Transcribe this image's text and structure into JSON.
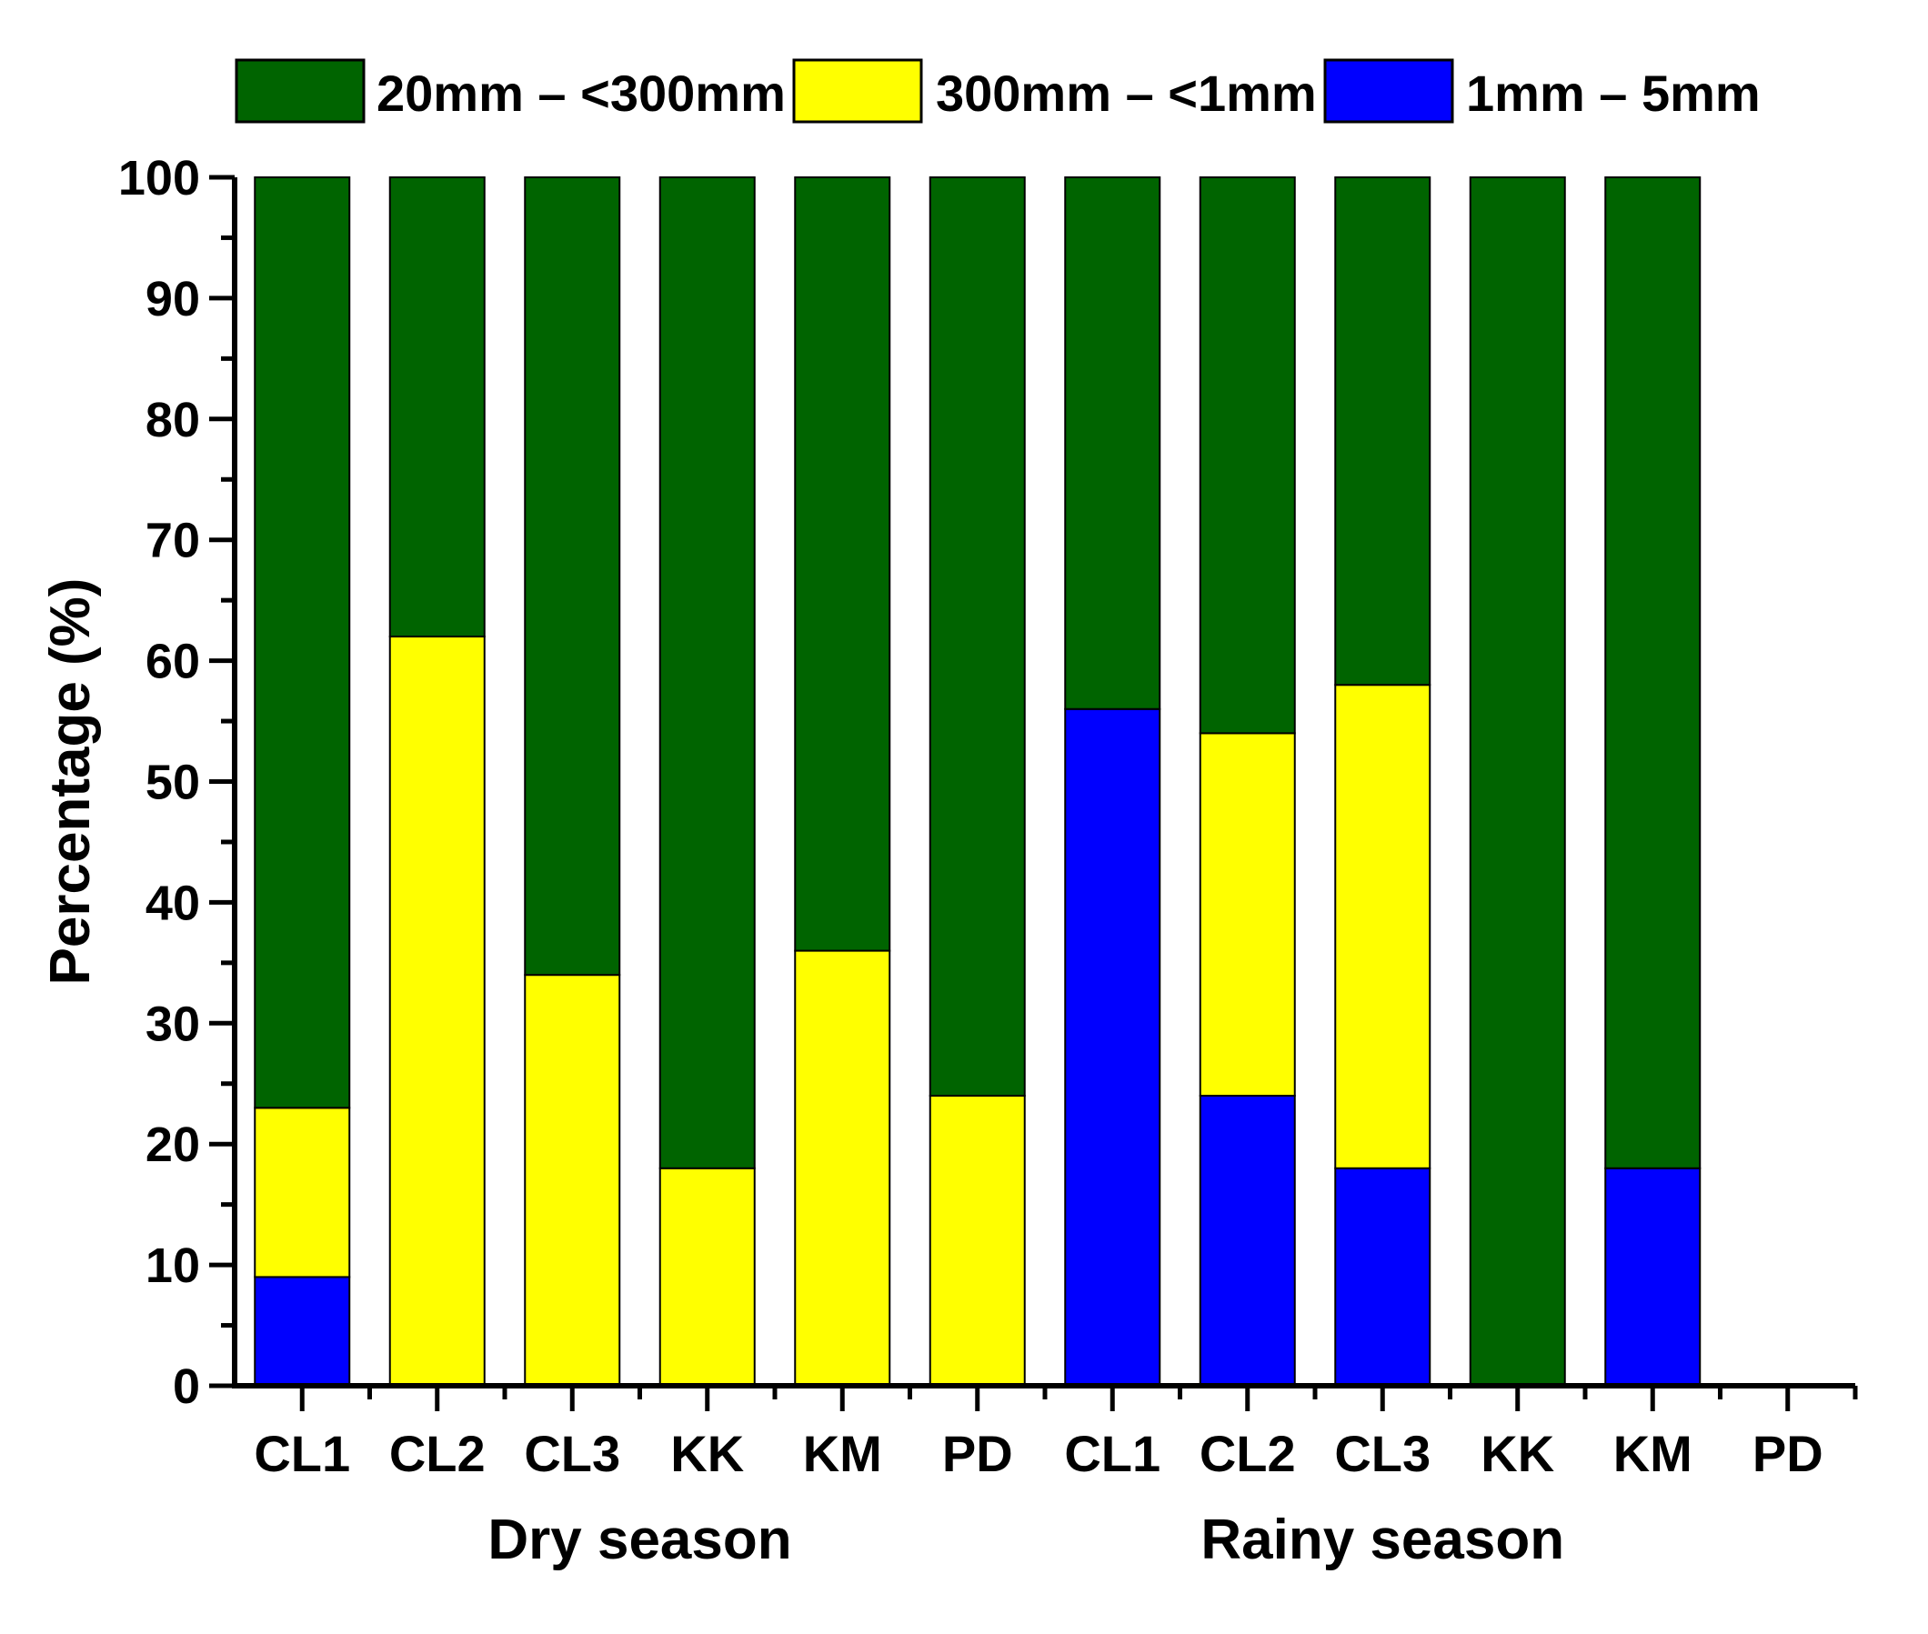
{
  "chart_data": {
    "type": "bar",
    "stacked": true,
    "title": "",
    "xlabel": "",
    "ylabel": "Percentage (%)",
    "ylim": [
      0,
      100
    ],
    "yticks": [
      0,
      10,
      20,
      30,
      40,
      50,
      60,
      70,
      80,
      90,
      100
    ],
    "grid": false,
    "legend_position": "top",
    "categories": [
      "CL1",
      "CL2",
      "CL3",
      "KK",
      "KM",
      "PD",
      "CL1",
      "CL2",
      "CL3",
      "KK",
      "KM",
      "PD"
    ],
    "groups": [
      {
        "label": "Dry season",
        "start": 0,
        "end": 5
      },
      {
        "label": "Rainy season",
        "start": 6,
        "end": 10
      }
    ],
    "series": [
      {
        "name": "1mm – 5mm",
        "color": "#0000ff",
        "values": [
          9,
          0,
          0,
          0,
          0,
          0,
          56,
          24,
          18,
          0,
          18,
          0
        ]
      },
      {
        "name": "300mm – <1mm",
        "color": "#ffff00",
        "values": [
          14,
          62,
          34,
          18,
          36,
          24,
          0,
          30,
          40,
          0,
          0,
          0
        ]
      },
      {
        "name": "20mm – <300mm",
        "color": "#006400",
        "values": [
          77,
          38,
          66,
          82,
          64,
          76,
          44,
          46,
          42,
          100,
          82,
          0
        ]
      }
    ],
    "legend_order": [
      "20mm – <300mm",
      "300mm – <1mm",
      "1mm – 5mm"
    ]
  }
}
